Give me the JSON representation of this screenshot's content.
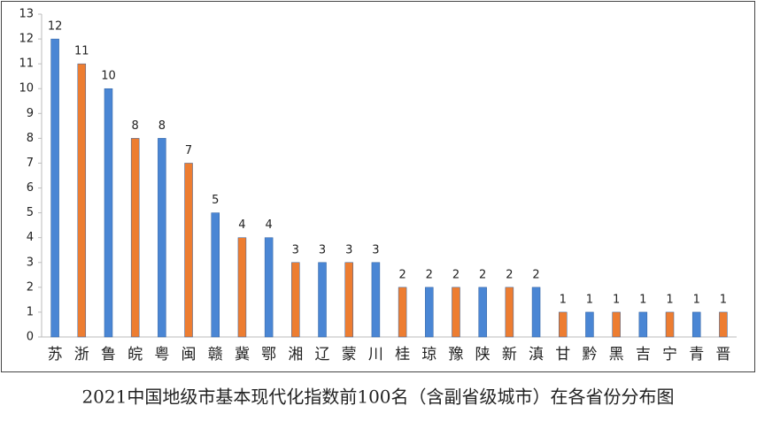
{
  "chart_data": {
    "type": "bar",
    "title": "2021中国地级市基本现代化指数前100名（含副省级城市）在各省份分布图",
    "categories": [
      "苏",
      "浙",
      "鲁",
      "皖",
      "粤",
      "闽",
      "赣",
      "冀",
      "鄂",
      "湘",
      "辽",
      "蒙",
      "川",
      "桂",
      "琼",
      "豫",
      "陕",
      "新",
      "滇",
      "甘",
      "黔",
      "黑",
      "吉",
      "宁",
      "青",
      "晋"
    ],
    "values": [
      12,
      11,
      10,
      8,
      8,
      7,
      5,
      4,
      4,
      3,
      3,
      3,
      3,
      2,
      2,
      2,
      2,
      2,
      2,
      1,
      1,
      1,
      1,
      1,
      1,
      1
    ],
    "colors": [
      "#4a86d4",
      "#ed7d31",
      "#4a86d4",
      "#ed7d31",
      "#4a86d4",
      "#ed7d31",
      "#4a86d4",
      "#ed7d31",
      "#4a86d4",
      "#ed7d31",
      "#4a86d4",
      "#ed7d31",
      "#4a86d4",
      "#ed7d31",
      "#4a86d4",
      "#ed7d31",
      "#4a86d4",
      "#ed7d31",
      "#4a86d4",
      "#ed7d31",
      "#4a86d4",
      "#ed7d31",
      "#4a86d4",
      "#ed7d31",
      "#4a86d4",
      "#ed7d31"
    ],
    "ylim": [
      0,
      13
    ],
    "yticks": [
      0,
      1,
      2,
      3,
      4,
      5,
      6,
      7,
      8,
      9,
      10,
      11,
      12,
      13
    ],
    "grid": false
  }
}
